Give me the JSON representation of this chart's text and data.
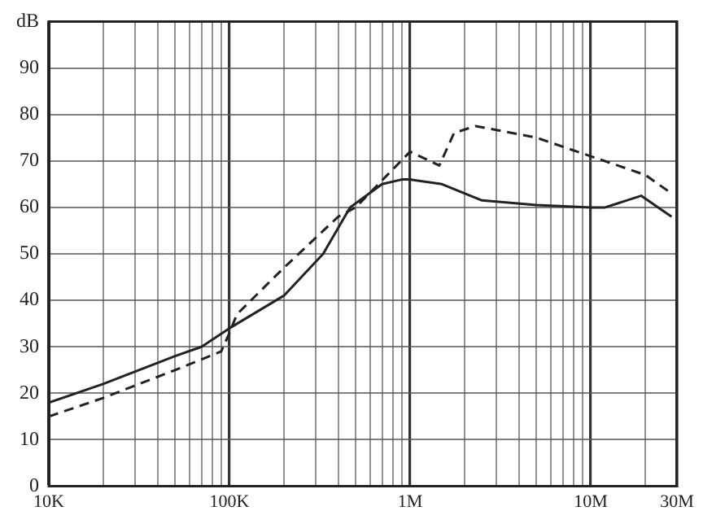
{
  "chart_data": {
    "type": "line",
    "log": "x",
    "grid": true,
    "legend": false,
    "marker": "none",
    "xlim": [
      10000,
      30000000
    ],
    "ylim": [
      0,
      100
    ],
    "xticks": [
      {
        "value": 10000,
        "label": "10K"
      },
      {
        "value": 20000,
        "label": null
      },
      {
        "value": 30000,
        "label": null
      },
      {
        "value": 40000,
        "label": null
      },
      {
        "value": 50000,
        "label": null
      },
      {
        "value": 60000,
        "label": null
      },
      {
        "value": 70000,
        "label": null
      },
      {
        "value": 80000,
        "label": null
      },
      {
        "value": 90000,
        "label": null
      },
      {
        "value": 100000,
        "label": "100K"
      },
      {
        "value": 200000,
        "label": null
      },
      {
        "value": 300000,
        "label": null
      },
      {
        "value": 400000,
        "label": null
      },
      {
        "value": 500000,
        "label": null
      },
      {
        "value": 600000,
        "label": null
      },
      {
        "value": 700000,
        "label": null
      },
      {
        "value": 800000,
        "label": null
      },
      {
        "value": 900000,
        "label": null
      },
      {
        "value": 1000000,
        "label": "1M"
      },
      {
        "value": 2000000,
        "label": null
      },
      {
        "value": 3000000,
        "label": null
      },
      {
        "value": 4000000,
        "label": null
      },
      {
        "value": 5000000,
        "label": null
      },
      {
        "value": 6000000,
        "label": null
      },
      {
        "value": 7000000,
        "label": null
      },
      {
        "value": 8000000,
        "label": null
      },
      {
        "value": 9000000,
        "label": null
      },
      {
        "value": 10000000,
        "label": "10M"
      },
      {
        "value": 20000000,
        "label": null
      },
      {
        "value": 30000000,
        "label": "30M"
      }
    ],
    "yticks": [
      0,
      10,
      20,
      30,
      40,
      50,
      60,
      70,
      80,
      90,
      {
        "value": 100,
        "label": "dB"
      }
    ],
    "series": [
      {
        "color": "#222222",
        "line_style": "solid",
        "x": [
          10000,
          20000,
          50000,
          70000,
          100000,
          200000,
          330000,
          465000,
          700000,
          900000,
          1000000,
          1500000,
          2500000,
          5000000,
          10000000,
          12000000,
          19000000,
          28000000
        ],
        "values": [
          18,
          22,
          28,
          30,
          34,
          41,
          50,
          60,
          65,
          66,
          66,
          65,
          61.5,
          60.5,
          60,
          60,
          62.5,
          58
        ]
      },
      {
        "color": "#222222",
        "line_style": "dashed",
        "x": [
          10000,
          20000,
          50000,
          90000,
          100000,
          110000,
          200000,
          400000,
          500000,
          1000000,
          1450000,
          1750000,
          2300000,
          5000000,
          10000000,
          20000000,
          28000000
        ],
        "values": [
          15,
          19,
          25,
          29,
          33,
          37,
          47,
          58,
          60,
          72,
          69,
          76,
          77.5,
          75,
          71,
          67,
          63
        ]
      }
    ]
  }
}
